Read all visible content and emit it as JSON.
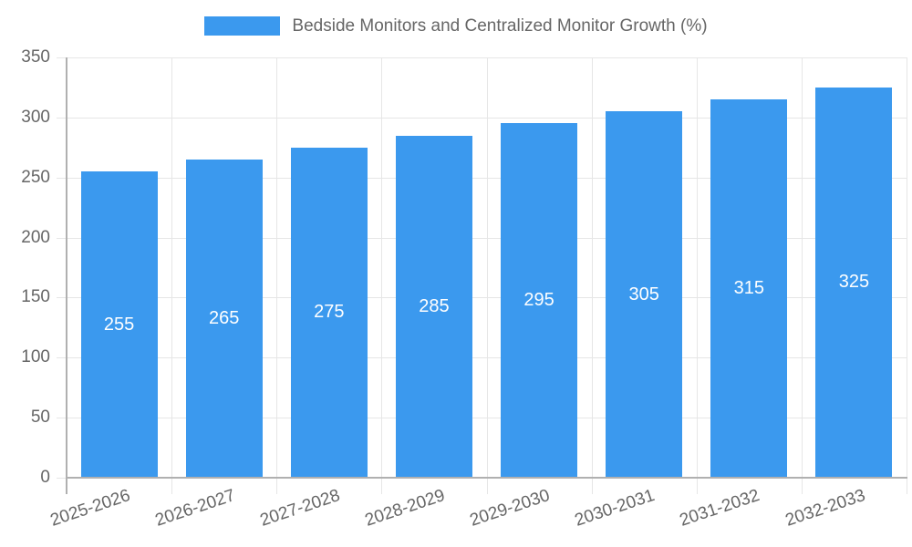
{
  "legend": {
    "label": "Bedside Monitors and Centralized Monitor Growth (%)"
  },
  "chart_data": {
    "type": "bar",
    "title": "Bedside Monitors and Centralized Monitor Growth (%)",
    "categories": [
      "2025-2026",
      "2026-2027",
      "2027-2028",
      "2028-2029",
      "2029-2030",
      "2030-2031",
      "2031-2032",
      "2032-2033"
    ],
    "values": [
      255,
      265,
      275,
      285,
      295,
      305,
      315,
      325
    ],
    "series": [
      {
        "name": "Bedside Monitors and Centralized Monitor Growth (%)",
        "values": [
          255,
          265,
          275,
          285,
          295,
          305,
          315,
          325
        ]
      }
    ],
    "xlabel": "",
    "ylabel": "",
    "ylim": [
      0,
      350
    ],
    "y_tick_labels": [
      "0",
      "50",
      "100",
      "150",
      "200",
      "250",
      "300",
      "350"
    ],
    "grid": true,
    "legend_position": "top",
    "bar_labels_shown": true,
    "colors": {
      "bar": "#3b99ee",
      "grid": "#e6e6e6",
      "axis": "#b0b0b0",
      "tick_text": "#666666",
      "bar_label_text": "#ffffff",
      "background": "#ffffff"
    }
  }
}
